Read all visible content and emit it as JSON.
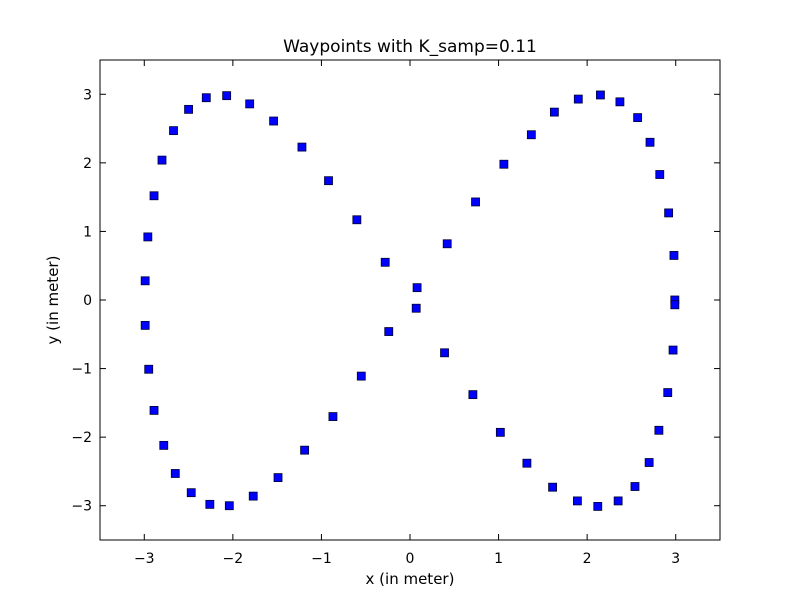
{
  "chart_data": {
    "type": "scatter",
    "title": "Waypoints with K_samp=0.11",
    "xlabel": "x (in meter)",
    "ylabel": "y (in meter)",
    "xlim": [
      -3.5,
      3.5
    ],
    "ylim": [
      -3.5,
      3.5
    ],
    "xticks": [
      -3,
      -2,
      -1,
      0,
      1,
      2,
      3
    ],
    "yticks": [
      -3,
      -2,
      -1,
      0,
      1,
      2,
      3
    ],
    "xtick_labels": [
      "−3",
      "−2",
      "−1",
      "0",
      "1",
      "2",
      "3"
    ],
    "ytick_labels": [
      "−3",
      "−2",
      "−1",
      "0",
      "1",
      "2",
      "3"
    ],
    "grid": false,
    "legend": false,
    "marker": "square",
    "color": "#0000ff",
    "series": [
      {
        "x": [
          0.08,
          0.42,
          0.74,
          1.06,
          1.37,
          1.63,
          1.9,
          2.15,
          2.37,
          2.57,
          2.71,
          2.82,
          2.92,
          2.98,
          2.99,
          2.99,
          2.97,
          2.91,
          2.81,
          2.7,
          2.54,
          2.35,
          2.12,
          1.89,
          1.61,
          1.32,
          1.02,
          0.71,
          0.39,
          0.07,
          -0.24,
          -0.55,
          -0.87,
          -1.19,
          -1.49,
          -1.77,
          -2.04,
          -2.26,
          -2.47,
          -2.65,
          -2.78,
          -2.89,
          -2.95,
          -2.99,
          -2.99,
          -2.96,
          -2.89,
          -2.8,
          -2.67,
          -2.5,
          -2.3,
          -2.07,
          -1.81,
          -1.54,
          -1.22,
          -0.92,
          -0.6,
          -0.28
        ],
        "y": [
          0.18,
          0.82,
          1.43,
          1.98,
          2.41,
          2.74,
          2.93,
          2.99,
          2.89,
          2.66,
          2.3,
          1.83,
          1.27,
          0.65,
          0.0,
          -0.07,
          -0.73,
          -1.35,
          -1.9,
          -2.37,
          -2.72,
          -2.93,
          -3.01,
          -2.93,
          -2.73,
          -2.38,
          -1.93,
          -1.38,
          -0.77,
          -0.12,
          -0.46,
          -1.11,
          -1.7,
          -2.19,
          -2.59,
          -2.86,
          -3.0,
          -2.98,
          -2.81,
          -2.53,
          -2.12,
          -1.61,
          -1.01,
          -0.37,
          0.28,
          0.92,
          1.52,
          2.04,
          2.47,
          2.78,
          2.95,
          2.98,
          2.86,
          2.61,
          2.23,
          1.74,
          1.17,
          0.55
        ]
      }
    ]
  }
}
